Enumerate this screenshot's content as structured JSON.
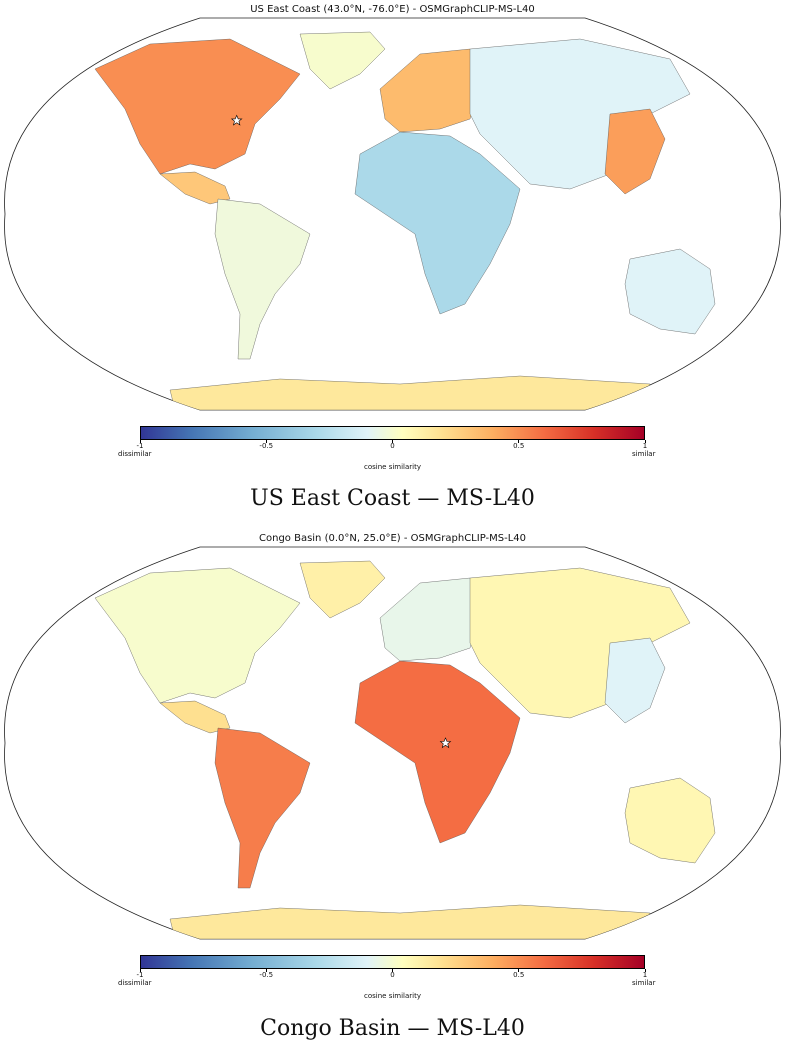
{
  "panels": [
    {
      "title": "US East Coast (43.0°N, -76.0°E) - OSMGraphCLIP-MS-L40",
      "caption": "US East Coast — MS-L40",
      "star": {
        "lat": 43.0,
        "lon": -76.0
      },
      "highlight_region": "North America",
      "regions": [
        {
          "name": "North America",
          "similarity": 0.5
        },
        {
          "name": "Central America",
          "similarity": 0.3
        },
        {
          "name": "South America",
          "similarity": -0.1
        },
        {
          "name": "Europe",
          "similarity": 0.35
        },
        {
          "name": "Africa",
          "similarity": -0.4
        },
        {
          "name": "Asia",
          "similarity": -0.2
        },
        {
          "name": "East Asia",
          "similarity": 0.45
        },
        {
          "name": "Australia",
          "similarity": -0.2
        },
        {
          "name": "Antarctica",
          "similarity": 0.15
        },
        {
          "name": "Greenland",
          "similarity": -0.05
        }
      ]
    },
    {
      "title": "Congo Basin (0.0°N, 25.0°E) - OSMGraphCLIP-MS-L40",
      "caption": "Congo Basin — MS-L40",
      "star": {
        "lat": 0.0,
        "lon": 25.0
      },
      "highlight_region": "Africa",
      "regions": [
        {
          "name": "North America",
          "similarity": -0.05
        },
        {
          "name": "Central America",
          "similarity": 0.2
        },
        {
          "name": "South America",
          "similarity": 0.55
        },
        {
          "name": "Europe",
          "similarity": -0.15
        },
        {
          "name": "Africa",
          "similarity": 0.6
        },
        {
          "name": "Asia",
          "similarity": 0.05
        },
        {
          "name": "East Asia",
          "similarity": -0.2
        },
        {
          "name": "Australia",
          "similarity": 0.05
        },
        {
          "name": "Antarctica",
          "similarity": 0.15
        },
        {
          "name": "Greenland",
          "similarity": 0.1
        }
      ]
    }
  ],
  "colorbar": {
    "label": "cosine similarity",
    "ticks": [
      "-1",
      "-0.5",
      "0",
      "0.5",
      "1"
    ],
    "range": [
      -1,
      1
    ],
    "left_label": "dissimilar",
    "right_label": "similar",
    "colormap": [
      "#313695",
      "#4575b4",
      "#74add1",
      "#abd9e9",
      "#e0f3f8",
      "#ffffbf",
      "#fee090",
      "#fdae61",
      "#f46d43",
      "#d73027",
      "#a50026"
    ]
  }
}
